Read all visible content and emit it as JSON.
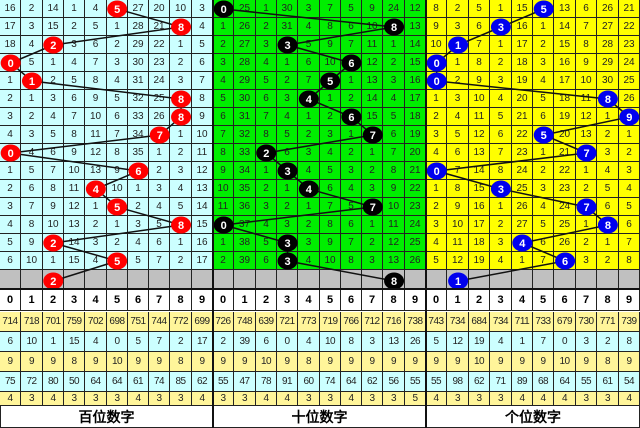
{
  "panels": [
    {
      "title": "百位数字",
      "bg": "#ccffff",
      "ball_color": "#ff0000",
      "rows": [
        [
          16,
          2,
          14,
          1,
          4,
          5,
          27,
          20,
          10,
          3
        ],
        [
          17,
          3,
          15,
          2,
          5,
          1,
          28,
          21,
          8,
          4
        ],
        [
          18,
          4,
          2,
          3,
          6,
          2,
          29,
          22,
          1,
          5
        ],
        [
          0,
          5,
          1,
          4,
          7,
          3,
          30,
          23,
          2,
          6
        ],
        [
          1,
          1,
          2,
          5,
          8,
          4,
          31,
          24,
          3,
          7
        ],
        [
          2,
          1,
          3,
          6,
          9,
          5,
          32,
          25,
          8,
          8
        ],
        [
          3,
          2,
          4,
          7,
          10,
          6,
          33,
          26,
          8,
          9
        ],
        [
          4,
          3,
          5,
          8,
          11,
          7,
          34,
          7,
          1,
          10
        ],
        [
          0,
          4,
          6,
          9,
          12,
          8,
          35,
          1,
          2,
          11
        ],
        [
          1,
          5,
          7,
          10,
          13,
          9,
          6,
          2,
          3,
          12
        ],
        [
          2,
          6,
          8,
          11,
          4,
          10,
          1,
          3,
          4,
          13
        ],
        [
          3,
          7,
          9,
          12,
          1,
          5,
          2,
          4,
          5,
          14
        ],
        [
          4,
          8,
          10,
          13,
          2,
          1,
          3,
          5,
          8,
          15
        ],
        [
          5,
          9,
          2,
          14,
          3,
          2,
          4,
          6,
          1,
          16
        ],
        [
          6,
          10,
          1,
          15,
          4,
          5,
          5,
          7,
          2,
          17
        ]
      ],
      "hits": [
        5,
        8,
        2,
        0,
        1,
        8,
        8,
        7,
        0,
        6,
        4,
        5,
        8,
        2,
        5
      ],
      "prediction": 2,
      "stats": [
        [
          "714",
          "718",
          "701",
          "759",
          "702",
          "698",
          "751",
          "744",
          "772",
          "699"
        ],
        [
          "6",
          "10",
          "1",
          "15",
          "4",
          "0",
          "5",
          "7",
          "2",
          "17"
        ],
        [
          "9",
          "9",
          "9",
          "8",
          "9",
          "10",
          "9",
          "9",
          "8",
          "9"
        ],
        [
          "75",
          "72",
          "80",
          "50",
          "64",
          "64",
          "61",
          "74",
          "85",
          "62"
        ],
        [
          "4",
          "3",
          "4",
          "3",
          "3",
          "3",
          "4",
          "3",
          "3",
          "4"
        ]
      ]
    },
    {
      "title": "十位数字",
      "bg": "#00ee00",
      "ball_color": "#000000",
      "rows": [
        [
          0,
          25,
          1,
          30,
          3,
          7,
          5,
          9,
          24,
          12
        ],
        [
          1,
          26,
          2,
          31,
          4,
          8,
          6,
          10,
          8,
          13
        ],
        [
          2,
          27,
          3,
          3,
          5,
          9,
          7,
          11,
          1,
          14
        ],
        [
          3,
          28,
          4,
          1,
          6,
          10,
          6,
          12,
          2,
          15
        ],
        [
          4,
          29,
          5,
          2,
          7,
          5,
          1,
          13,
          3,
          16
        ],
        [
          5,
          30,
          6,
          3,
          4,
          1,
          2,
          14,
          4,
          17
        ],
        [
          6,
          31,
          7,
          4,
          1,
          2,
          6,
          15,
          5,
          18
        ],
        [
          7,
          32,
          8,
          5,
          2,
          3,
          1,
          7,
          6,
          19
        ],
        [
          8,
          33,
          2,
          6,
          3,
          4,
          2,
          1,
          7,
          20
        ],
        [
          9,
          34,
          1,
          3,
          4,
          5,
          3,
          2,
          8,
          21
        ],
        [
          10,
          35,
          2,
          1,
          4,
          6,
          4,
          3,
          9,
          22
        ],
        [
          11,
          36,
          3,
          2,
          1,
          7,
          5,
          7,
          10,
          23
        ],
        [
          0,
          37,
          4,
          3,
          2,
          8,
          6,
          1,
          11,
          24
        ],
        [
          1,
          38,
          5,
          3,
          3,
          9,
          7,
          2,
          12,
          25
        ],
        [
          2,
          39,
          6,
          3,
          4,
          10,
          8,
          3,
          13,
          26
        ]
      ],
      "hits": [
        0,
        8,
        3,
        6,
        5,
        4,
        6,
        7,
        2,
        3,
        4,
        7,
        0,
        3,
        3
      ],
      "prediction": 8,
      "stats": [
        [
          "726",
          "748",
          "639",
          "721",
          "773",
          "719",
          "766",
          "712",
          "716",
          "738"
        ],
        [
          "2",
          "39",
          "6",
          "0",
          "4",
          "10",
          "8",
          "3",
          "13",
          "26"
        ],
        [
          "9",
          "9",
          "10",
          "9",
          "8",
          "9",
          "9",
          "9",
          "9",
          "9"
        ],
        [
          "55",
          "47",
          "78",
          "91",
          "60",
          "74",
          "64",
          "62",
          "56",
          "55"
        ],
        [
          "3",
          "3",
          "4",
          "4",
          "3",
          "3",
          "4",
          "3",
          "3",
          "5"
        ]
      ]
    },
    {
      "title": "个位数字",
      "bg": "#ffff00",
      "ball_color": "#0000ee",
      "rows": [
        [
          8,
          2,
          5,
          1,
          15,
          5,
          13,
          6,
          26,
          21
        ],
        [
          9,
          3,
          6,
          3,
          16,
          1,
          14,
          7,
          27,
          22
        ],
        [
          10,
          1,
          7,
          1,
          17,
          2,
          15,
          8,
          28,
          23
        ],
        [
          0,
          1,
          8,
          2,
          18,
          3,
          16,
          9,
          29,
          24
        ],
        [
          0,
          2,
          9,
          3,
          19,
          4,
          17,
          10,
          30,
          25
        ],
        [
          1,
          3,
          10,
          4,
          20,
          5,
          18,
          11,
          8,
          26
        ],
        [
          2,
          4,
          11,
          5,
          21,
          6,
          19,
          12,
          1,
          9
        ],
        [
          3,
          5,
          12,
          6,
          22,
          5,
          20,
          13,
          2,
          1
        ],
        [
          4,
          6,
          13,
          7,
          23,
          1,
          21,
          7,
          3,
          2
        ],
        [
          0,
          7,
          14,
          8,
          24,
          2,
          22,
          1,
          4,
          3
        ],
        [
          1,
          8,
          15,
          3,
          25,
          3,
          23,
          2,
          5,
          4
        ],
        [
          2,
          9,
          16,
          1,
          26,
          4,
          24,
          7,
          6,
          5
        ],
        [
          3,
          10,
          17,
          2,
          27,
          5,
          25,
          1,
          8,
          6
        ],
        [
          4,
          11,
          18,
          3,
          4,
          6,
          26,
          2,
          1,
          7
        ],
        [
          5,
          12,
          19,
          4,
          1,
          7,
          6,
          3,
          2,
          8
        ]
      ],
      "hits": [
        5,
        3,
        1,
        0,
        0,
        8,
        9,
        5,
        7,
        0,
        3,
        7,
        8,
        4,
        6
      ],
      "prediction": 1,
      "stats": [
        [
          "743",
          "734",
          "684",
          "734",
          "711",
          "733",
          "679",
          "730",
          "771",
          "739"
        ],
        [
          "5",
          "12",
          "19",
          "4",
          "1",
          "7",
          "0",
          "3",
          "2",
          "8"
        ],
        [
          "9",
          "9",
          "10",
          "9",
          "9",
          "9",
          "10",
          "9",
          "8",
          "9"
        ],
        [
          "55",
          "98",
          "62",
          "71",
          "89",
          "68",
          "64",
          "55",
          "61",
          "54"
        ],
        [
          "4",
          "3",
          "3",
          "3",
          "4",
          "4",
          "4",
          "3",
          "3",
          "4"
        ]
      ]
    }
  ],
  "digits": [
    "0",
    "1",
    "2",
    "3",
    "4",
    "5",
    "6",
    "7",
    "8",
    "9"
  ],
  "colors": {
    "stat_yellow": "#fff59a",
    "stat_cyan": "#ccffff",
    "prediction_row": "#c0c0c0"
  }
}
